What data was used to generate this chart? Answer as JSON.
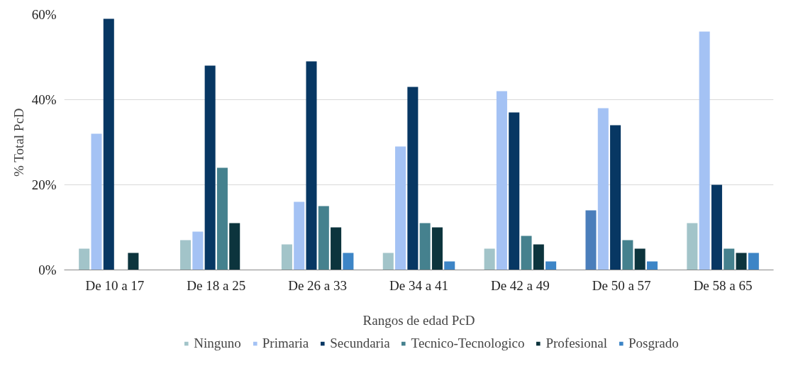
{
  "chart_data": {
    "type": "bar",
    "xlabel": "Rangos de edad PcD",
    "ylabel": "% Total PcD",
    "categories": [
      "De 10 a 17",
      "De 18 a 25",
      "De 26 a 33",
      "De 34 a 41",
      "De 42 a 49",
      "De 50 a 57",
      "De 58 a 65"
    ],
    "series": [
      {
        "name": "Ninguno",
        "color": "#a2c4c9",
        "colors": [
          "#a2c4c9",
          "#a2c4c9",
          "#a2c4c9",
          "#a2c4c9",
          "#a2c4c9",
          "#4a7ebb",
          "#a2c4c9"
        ],
        "values": [
          5,
          7,
          6,
          4,
          5,
          14,
          11
        ]
      },
      {
        "name": "Primaria",
        "color": "#a4c2f4",
        "values": [
          32,
          9,
          16,
          29,
          42,
          38,
          56
        ]
      },
      {
        "name": "Secundaria",
        "color": "#073763",
        "values": [
          59,
          48,
          49,
          43,
          37,
          34,
          20
        ]
      },
      {
        "name": "Tecnico-Tecnologico",
        "color": "#45818e",
        "values": [
          0,
          24,
          15,
          11,
          8,
          7,
          5
        ]
      },
      {
        "name": "Profesional",
        "color": "#0c343d",
        "values": [
          4,
          11,
          10,
          10,
          6,
          5,
          4
        ]
      },
      {
        "name": "Posgrado",
        "color": "#3d85c6",
        "values": [
          0,
          0,
          4,
          2,
          2,
          2,
          4
        ]
      }
    ],
    "ylim": [
      0,
      60
    ],
    "yticks": [
      {
        "value": 0,
        "label": "0%"
      },
      {
        "value": 20,
        "label": "20%"
      },
      {
        "value": 40,
        "label": "40%"
      },
      {
        "value": 60,
        "label": "60%"
      }
    ],
    "grid": "y",
    "legend": "bottom"
  }
}
